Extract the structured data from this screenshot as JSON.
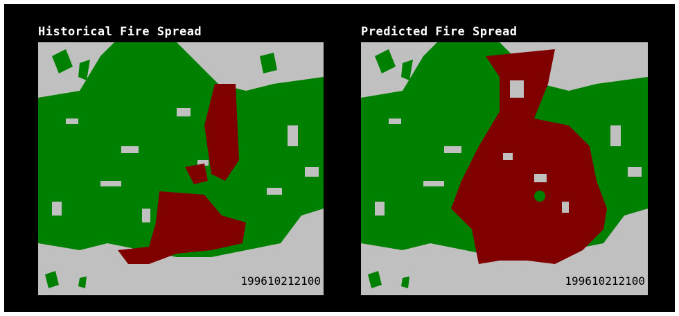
{
  "panels": [
    {
      "title": "Historical Fire Spread",
      "timestamp": "199610212100"
    },
    {
      "title": "Predicted Fire Spread",
      "timestamp": "199610212100"
    }
  ]
}
